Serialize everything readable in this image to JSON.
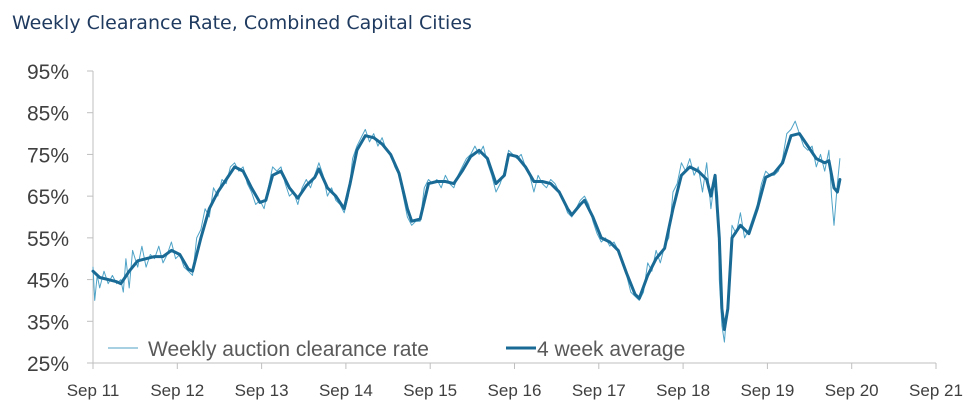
{
  "chart_data": {
    "type": "line",
    "title": "Weekly Clearance Rate, Combined Capital Cities",
    "xlabel": "",
    "ylabel": "",
    "ylim": [
      25,
      95
    ],
    "y_ticks": [
      "95%",
      "85%",
      "75%",
      "65%",
      "55%",
      "45%",
      "35%",
      "25%"
    ],
    "x_ticks": [
      "Sep 11",
      "Sep 12",
      "Sep 13",
      "Sep 14",
      "Sep 15",
      "Sep 16",
      "Sep 17",
      "Sep 18",
      "Sep 19",
      "Sep 20",
      "Sep 21"
    ],
    "xlim": [
      2011.67,
      2021.67
    ],
    "legend_position": "bottom-left",
    "colors": {
      "weekly": "#4fa3c7",
      "average": "#1a6a96",
      "axis": "#bfbfbf"
    },
    "series": [
      {
        "name": "Weekly auction clearance rate",
        "style": "thin",
        "points": [
          [
            2011.67,
            48
          ],
          [
            2011.69,
            40
          ],
          [
            2011.72,
            46
          ],
          [
            2011.75,
            43
          ],
          [
            2011.8,
            47
          ],
          [
            2011.85,
            44
          ],
          [
            2011.9,
            46
          ],
          [
            2011.95,
            44
          ],
          [
            2012.0,
            45
          ],
          [
            2012.03,
            42
          ],
          [
            2012.06,
            50
          ],
          [
            2012.1,
            43
          ],
          [
            2012.14,
            52
          ],
          [
            2012.2,
            48
          ],
          [
            2012.25,
            53
          ],
          [
            2012.3,
            48
          ],
          [
            2012.35,
            51
          ],
          [
            2012.4,
            50
          ],
          [
            2012.45,
            53
          ],
          [
            2012.5,
            49
          ],
          [
            2012.55,
            51
          ],
          [
            2012.6,
            54
          ],
          [
            2012.65,
            50
          ],
          [
            2012.7,
            51
          ],
          [
            2012.75,
            48
          ],
          [
            2012.8,
            47
          ],
          [
            2012.85,
            46
          ],
          [
            2012.9,
            55
          ],
          [
            2012.95,
            57
          ],
          [
            2013.0,
            62
          ],
          [
            2013.05,
            60
          ],
          [
            2013.1,
            67
          ],
          [
            2013.15,
            65
          ],
          [
            2013.2,
            69
          ],
          [
            2013.25,
            68
          ],
          [
            2013.3,
            72
          ],
          [
            2013.35,
            73
          ],
          [
            2013.4,
            71
          ],
          [
            2013.45,
            72
          ],
          [
            2013.5,
            68
          ],
          [
            2013.55,
            66
          ],
          [
            2013.6,
            63
          ],
          [
            2013.65,
            64
          ],
          [
            2013.7,
            62
          ],
          [
            2013.75,
            67
          ],
          [
            2013.8,
            72
          ],
          [
            2013.85,
            71
          ],
          [
            2013.9,
            72
          ],
          [
            2013.95,
            68
          ],
          [
            2014.0,
            65
          ],
          [
            2014.05,
            66
          ],
          [
            2014.1,
            63
          ],
          [
            2014.15,
            67
          ],
          [
            2014.2,
            69
          ],
          [
            2014.25,
            67
          ],
          [
            2014.3,
            70
          ],
          [
            2014.35,
            73
          ],
          [
            2014.4,
            70
          ],
          [
            2014.45,
            65
          ],
          [
            2014.5,
            67
          ],
          [
            2014.55,
            64
          ],
          [
            2014.6,
            63
          ],
          [
            2014.65,
            61
          ],
          [
            2014.7,
            65
          ],
          [
            2014.75,
            74
          ],
          [
            2014.8,
            77
          ],
          [
            2014.85,
            79
          ],
          [
            2014.9,
            81
          ],
          [
            2014.95,
            78
          ],
          [
            2015.0,
            80
          ],
          [
            2015.05,
            77
          ],
          [
            2015.1,
            79
          ],
          [
            2015.15,
            76
          ],
          [
            2015.2,
            75
          ],
          [
            2015.25,
            72
          ],
          [
            2015.3,
            70
          ],
          [
            2015.35,
            65
          ],
          [
            2015.4,
            60
          ],
          [
            2015.45,
            58
          ],
          [
            2015.5,
            59
          ],
          [
            2015.55,
            59
          ],
          [
            2015.6,
            67
          ],
          [
            2015.65,
            69
          ],
          [
            2015.7,
            68
          ],
          [
            2015.75,
            69
          ],
          [
            2015.8,
            67
          ],
          [
            2015.85,
            70
          ],
          [
            2015.9,
            68
          ],
          [
            2015.95,
            67
          ],
          [
            2016.0,
            70
          ],
          [
            2016.05,
            72
          ],
          [
            2016.1,
            74
          ],
          [
            2016.15,
            75
          ],
          [
            2016.2,
            77
          ],
          [
            2016.25,
            75
          ],
          [
            2016.3,
            77
          ],
          [
            2016.35,
            73
          ],
          [
            2016.4,
            70
          ],
          [
            2016.45,
            66
          ],
          [
            2016.5,
            68
          ],
          [
            2016.55,
            71
          ],
          [
            2016.6,
            76
          ],
          [
            2016.65,
            75
          ],
          [
            2016.7,
            74
          ],
          [
            2016.75,
            75
          ],
          [
            2016.8,
            72
          ],
          [
            2016.85,
            70
          ],
          [
            2016.9,
            66
          ],
          [
            2016.95,
            70
          ],
          [
            2017.0,
            68
          ],
          [
            2017.05,
            67
          ],
          [
            2017.1,
            69
          ],
          [
            2017.15,
            68
          ],
          [
            2017.2,
            66
          ],
          [
            2017.25,
            64
          ],
          [
            2017.3,
            61
          ],
          [
            2017.35,
            60
          ],
          [
            2017.4,
            62
          ],
          [
            2017.45,
            64
          ],
          [
            2017.5,
            65
          ],
          [
            2017.55,
            63
          ],
          [
            2017.6,
            59
          ],
          [
            2017.65,
            56
          ],
          [
            2017.7,
            54
          ],
          [
            2017.75,
            55
          ],
          [
            2017.8,
            53
          ],
          [
            2017.85,
            54
          ],
          [
            2017.9,
            52
          ],
          [
            2017.95,
            49
          ],
          [
            2018.0,
            46
          ],
          [
            2018.05,
            42
          ],
          [
            2018.1,
            41
          ],
          [
            2018.15,
            40
          ],
          [
            2018.2,
            42
          ],
          [
            2018.25,
            49
          ],
          [
            2018.3,
            47
          ],
          [
            2018.35,
            52
          ],
          [
            2018.4,
            49
          ],
          [
            2018.45,
            53
          ],
          [
            2018.5,
            55
          ],
          [
            2018.55,
            66
          ],
          [
            2018.6,
            68
          ],
          [
            2018.65,
            73
          ],
          [
            2018.7,
            71
          ],
          [
            2018.75,
            74
          ],
          [
            2018.8,
            70
          ],
          [
            2018.85,
            72
          ],
          [
            2018.9,
            66
          ],
          [
            2018.95,
            73
          ],
          [
            2019.0,
            62
          ],
          [
            2019.05,
            70
          ],
          [
            2019.08,
            65
          ],
          [
            2019.1,
            45
          ],
          [
            2019.13,
            34
          ],
          [
            2019.16,
            30
          ],
          [
            2019.2,
            40
          ],
          [
            2019.25,
            58
          ],
          [
            2019.3,
            56
          ],
          [
            2019.35,
            61
          ],
          [
            2019.4,
            55
          ],
          [
            2019.45,
            57
          ],
          [
            2019.5,
            60
          ],
          [
            2019.55,
            63
          ],
          [
            2019.6,
            68
          ],
          [
            2019.65,
            71
          ],
          [
            2019.7,
            70
          ],
          [
            2019.75,
            70
          ],
          [
            2019.8,
            71
          ],
          [
            2019.85,
            74
          ],
          [
            2019.9,
            80
          ],
          [
            2019.95,
            81
          ],
          [
            2020.0,
            83
          ],
          [
            2020.05,
            80
          ],
          [
            2020.1,
            77
          ],
          [
            2020.15,
            76
          ],
          [
            2020.2,
            77
          ],
          [
            2020.25,
            72
          ],
          [
            2020.3,
            75
          ],
          [
            2020.35,
            71
          ],
          [
            2020.4,
            76
          ],
          [
            2020.43,
            65
          ],
          [
            2020.46,
            58
          ],
          [
            2020.5,
            68
          ],
          [
            2020.53,
            74
          ]
        ]
      },
      {
        "name": "4 week average",
        "style": "thick",
        "points": [
          [
            2011.67,
            47
          ],
          [
            2011.75,
            45.5
          ],
          [
            2011.85,
            45
          ],
          [
            2011.95,
            44.5
          ],
          [
            2012.0,
            44
          ],
          [
            2012.05,
            45.5
          ],
          [
            2012.1,
            47
          ],
          [
            2012.2,
            49.5
          ],
          [
            2012.3,
            50
          ],
          [
            2012.4,
            50.5
          ],
          [
            2012.5,
            50.5
          ],
          [
            2012.6,
            52
          ],
          [
            2012.7,
            51
          ],
          [
            2012.8,
            47.5
          ],
          [
            2012.85,
            47
          ],
          [
            2012.95,
            55
          ],
          [
            2013.05,
            62
          ],
          [
            2013.15,
            66
          ],
          [
            2013.25,
            69
          ],
          [
            2013.35,
            72
          ],
          [
            2013.45,
            71
          ],
          [
            2013.55,
            67
          ],
          [
            2013.65,
            63.5
          ],
          [
            2013.72,
            64
          ],
          [
            2013.8,
            70
          ],
          [
            2013.9,
            71
          ],
          [
            2014.0,
            67
          ],
          [
            2014.1,
            64.5
          ],
          [
            2014.2,
            67.5
          ],
          [
            2014.3,
            69.5
          ],
          [
            2014.35,
            71.5
          ],
          [
            2014.45,
            67
          ],
          [
            2014.55,
            65
          ],
          [
            2014.65,
            62
          ],
          [
            2014.72,
            68
          ],
          [
            2014.8,
            76
          ],
          [
            2014.9,
            79.5
          ],
          [
            2015.0,
            79
          ],
          [
            2015.1,
            77.5
          ],
          [
            2015.2,
            75
          ],
          [
            2015.3,
            70.5
          ],
          [
            2015.4,
            62
          ],
          [
            2015.45,
            59
          ],
          [
            2015.55,
            59.5
          ],
          [
            2015.65,
            68
          ],
          [
            2015.75,
            68.5
          ],
          [
            2015.85,
            68.5
          ],
          [
            2015.95,
            68
          ],
          [
            2016.05,
            71
          ],
          [
            2016.15,
            74.5
          ],
          [
            2016.25,
            76
          ],
          [
            2016.35,
            74
          ],
          [
            2016.45,
            68
          ],
          [
            2016.55,
            70
          ],
          [
            2016.6,
            75
          ],
          [
            2016.7,
            74.5
          ],
          [
            2016.8,
            72
          ],
          [
            2016.9,
            68.5
          ],
          [
            2017.0,
            68.5
          ],
          [
            2017.1,
            68
          ],
          [
            2017.2,
            66
          ],
          [
            2017.3,
            62
          ],
          [
            2017.35,
            60.5
          ],
          [
            2017.45,
            63
          ],
          [
            2017.5,
            64
          ],
          [
            2017.6,
            60
          ],
          [
            2017.7,
            55
          ],
          [
            2017.8,
            54
          ],
          [
            2017.9,
            52
          ],
          [
            2018.0,
            46.5
          ],
          [
            2018.1,
            41.5
          ],
          [
            2018.15,
            40.5
          ],
          [
            2018.25,
            46
          ],
          [
            2018.35,
            50
          ],
          [
            2018.45,
            52.5
          ],
          [
            2018.55,
            62
          ],
          [
            2018.65,
            70
          ],
          [
            2018.75,
            72
          ],
          [
            2018.85,
            71
          ],
          [
            2018.95,
            69
          ],
          [
            2019.0,
            65
          ],
          [
            2019.05,
            70
          ],
          [
            2019.1,
            55
          ],
          [
            2019.13,
            38
          ],
          [
            2019.16,
            33
          ],
          [
            2019.2,
            38
          ],
          [
            2019.25,
            55
          ],
          [
            2019.35,
            58
          ],
          [
            2019.45,
            56
          ],
          [
            2019.55,
            62
          ],
          [
            2019.65,
            69.5
          ],
          [
            2019.75,
            70.5
          ],
          [
            2019.85,
            73
          ],
          [
            2019.95,
            79.5
          ],
          [
            2020.05,
            80
          ],
          [
            2020.15,
            77
          ],
          [
            2020.25,
            74
          ],
          [
            2020.35,
            73
          ],
          [
            2020.4,
            73.5
          ],
          [
            2020.46,
            67
          ],
          [
            2020.5,
            66
          ],
          [
            2020.53,
            69
          ]
        ]
      }
    ]
  }
}
